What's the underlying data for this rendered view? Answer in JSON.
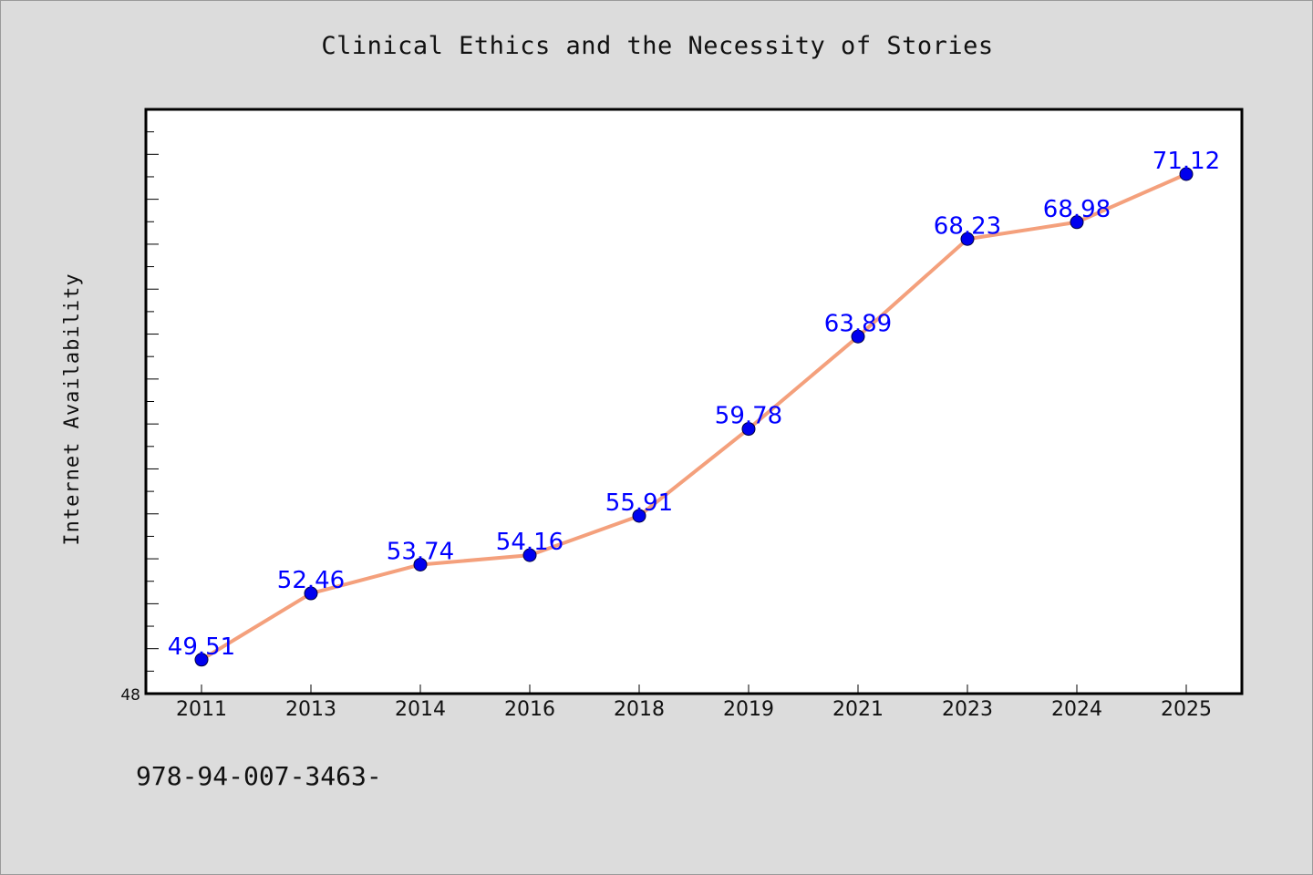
{
  "chart_data": {
    "type": "line",
    "title": "Clinical Ethics and the Necessity of Stories",
    "xlabel": "",
    "ylabel": "Internet Availability",
    "categories": [
      "2011",
      "2013",
      "2014",
      "2016",
      "2018",
      "2019",
      "2021",
      "2023",
      "2024",
      "2025"
    ],
    "series": [
      {
        "values": [
          49.51,
          52.46,
          53.74,
          54.16,
          55.91,
          59.78,
          63.89,
          68.23,
          68.98,
          71.12
        ],
        "data_labels": [
          "49.51",
          "52.46",
          "53.74",
          "54.16",
          "55.91",
          "59.78",
          "63.89",
          "68.23",
          "68.98",
          "71.12"
        ]
      }
    ],
    "y_tick_labels": [
      "48"
    ],
    "ylim": [
      48,
      74
    ],
    "grid": false,
    "legend": "none",
    "colors": {
      "line": "#f4a07c",
      "marker": "#0000ee",
      "data_label": "#0000ff",
      "plot_background": "#ffffff",
      "page_background": "#dcdcdc"
    }
  },
  "footnote": "978-94-007-3463-"
}
